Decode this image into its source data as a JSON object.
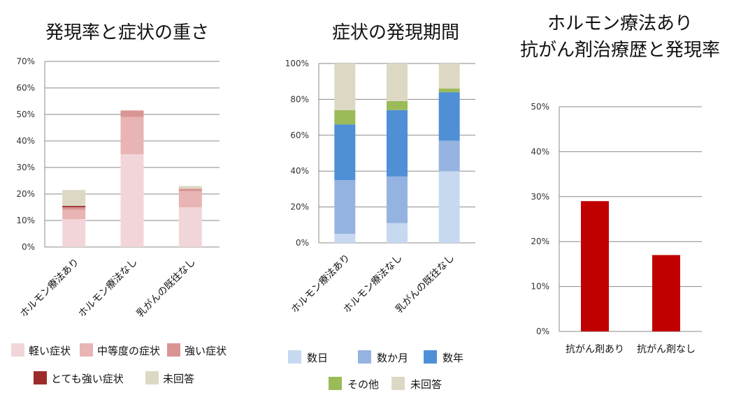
{
  "chart_data": [
    {
      "type": "bar",
      "stacked": true,
      "title": "発現率と症状の重さ",
      "categories": [
        "ホルモン療法あり",
        "ホルモン療法なし",
        "乳がんの既往なし"
      ],
      "ylim": [
        0,
        70
      ],
      "yticks": [
        "0%",
        "10%",
        "20%",
        "30%",
        "40%",
        "50%",
        "60%",
        "70%"
      ],
      "grid": true,
      "legend_position": "bottom",
      "series": [
        {
          "name": "軽い症状",
          "color": "#F2D5D9",
          "values": [
            10.5,
            35,
            15
          ]
        },
        {
          "name": "中等度の症状",
          "color": "#E8B4B4",
          "values": [
            3.5,
            14,
            6
          ]
        },
        {
          "name": "強い症状",
          "color": "#D99594",
          "values": [
            1,
            2.5,
            1
          ]
        },
        {
          "name": "とても強い症状",
          "color": "#9C2B2B",
          "values": [
            0.5,
            0,
            0
          ]
        },
        {
          "name": "未回答",
          "color": "#DDD8C4",
          "values": [
            6,
            0,
            1
          ]
        }
      ]
    },
    {
      "type": "bar",
      "stacked": true,
      "title": "症状の発現期間",
      "categories": [
        "ホルモン療法あり",
        "ホルモン療法なし",
        "乳がんの既往なし"
      ],
      "ylim": [
        0,
        100
      ],
      "yticks": [
        "0%",
        "20%",
        "40%",
        "60%",
        "80%",
        "100%"
      ],
      "grid": true,
      "legend_position": "bottom",
      "series": [
        {
          "name": "数日",
          "color": "#C6D9F1",
          "values": [
            5,
            11,
            40
          ]
        },
        {
          "name": "数か月",
          "color": "#95B3E0",
          "values": [
            30,
            26,
            17
          ]
        },
        {
          "name": "数年",
          "color": "#4F8FD6",
          "values": [
            31,
            37,
            27
          ]
        },
        {
          "name": "その他",
          "color": "#9BBB59",
          "values": [
            8,
            5,
            2
          ]
        },
        {
          "name": "未回答",
          "color": "#DDD8C4",
          "values": [
            26,
            21,
            14
          ]
        }
      ]
    },
    {
      "type": "bar",
      "title_lines": [
        "ホルモン療法あり",
        "抗がん剤治療歴と発現率"
      ],
      "categories": [
        "抗がん剤あり",
        "抗がん剤なし"
      ],
      "ylim": [
        0,
        50
      ],
      "yticks": [
        "0%",
        "10%",
        "20%",
        "30%",
        "40%",
        "50%"
      ],
      "grid": true,
      "color": "#C00000",
      "values": [
        29,
        17
      ]
    }
  ]
}
